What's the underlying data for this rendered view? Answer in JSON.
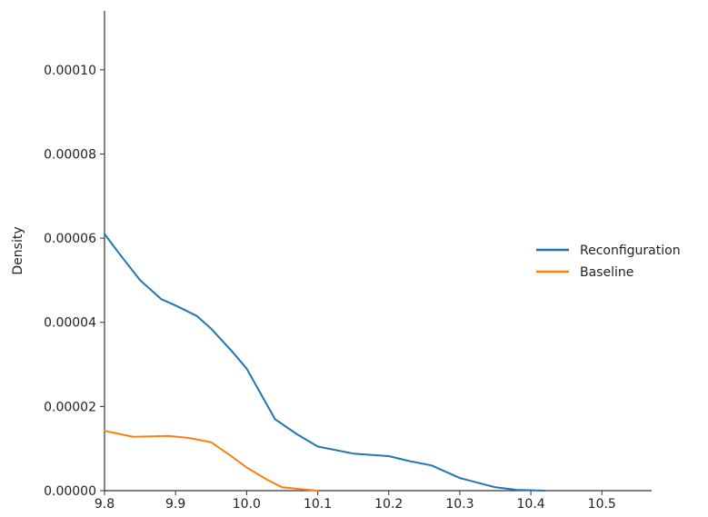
{
  "chart_data": {
    "type": "line",
    "title": "",
    "xlabel": "",
    "ylabel": "Density",
    "xlim": [
      9.8,
      10.57
    ],
    "ylim": [
      0,
      0.000114
    ],
    "x_ticks": [
      {
        "value": 9.8,
        "label": "9.8"
      },
      {
        "value": 9.9,
        "label": "9.9"
      },
      {
        "value": 10.0,
        "label": "10.0"
      },
      {
        "value": 10.1,
        "label": "10.1"
      },
      {
        "value": 10.2,
        "label": "10.2"
      },
      {
        "value": 10.3,
        "label": "10.3"
      },
      {
        "value": 10.4,
        "label": "10.4"
      },
      {
        "value": 10.5,
        "label": "10.5"
      }
    ],
    "y_ticks": [
      {
        "value": 0.0,
        "label": "0.00000"
      },
      {
        "value": 2e-05,
        "label": "0.00002"
      },
      {
        "value": 4e-05,
        "label": "0.00004"
      },
      {
        "value": 6e-05,
        "label": "0.00006"
      },
      {
        "value": 8e-05,
        "label": "0.00008"
      },
      {
        "value": 0.0001,
        "label": "0.00010"
      }
    ],
    "grid": false,
    "legend_position": "right",
    "series": [
      {
        "name": "Reconfiguration",
        "color": "#1f77b4",
        "x": [
          9.8,
          9.82,
          9.85,
          9.88,
          9.9,
          9.93,
          9.95,
          9.98,
          10.0,
          10.02,
          10.04,
          10.07,
          10.1,
          10.15,
          10.2,
          10.23,
          10.26,
          10.3,
          10.35,
          10.38,
          10.42
        ],
        "y": [
          6.1e-05,
          5.65e-05,
          5e-05,
          4.55e-05,
          4.4e-05,
          4.15e-05,
          3.85e-05,
          3.3e-05,
          2.9e-05,
          2.3e-05,
          1.7e-05,
          1.35e-05,
          1.05e-05,
          8.8e-06,
          8.2e-06,
          7e-06,
          6e-06,
          3e-06,
          8e-07,
          2e-07,
          0.0
        ]
      },
      {
        "name": "Baseline",
        "color": "#ff7f0e",
        "x": [
          9.8,
          9.84,
          9.89,
          9.92,
          9.95,
          9.98,
          10.0,
          10.03,
          10.05,
          10.08,
          10.1
        ],
        "y": [
          1.42e-05,
          1.28e-05,
          1.3e-05,
          1.25e-05,
          1.15e-05,
          8e-06,
          5.5e-06,
          2.5e-06,
          8e-07,
          3e-07,
          0.0
        ]
      }
    ]
  }
}
